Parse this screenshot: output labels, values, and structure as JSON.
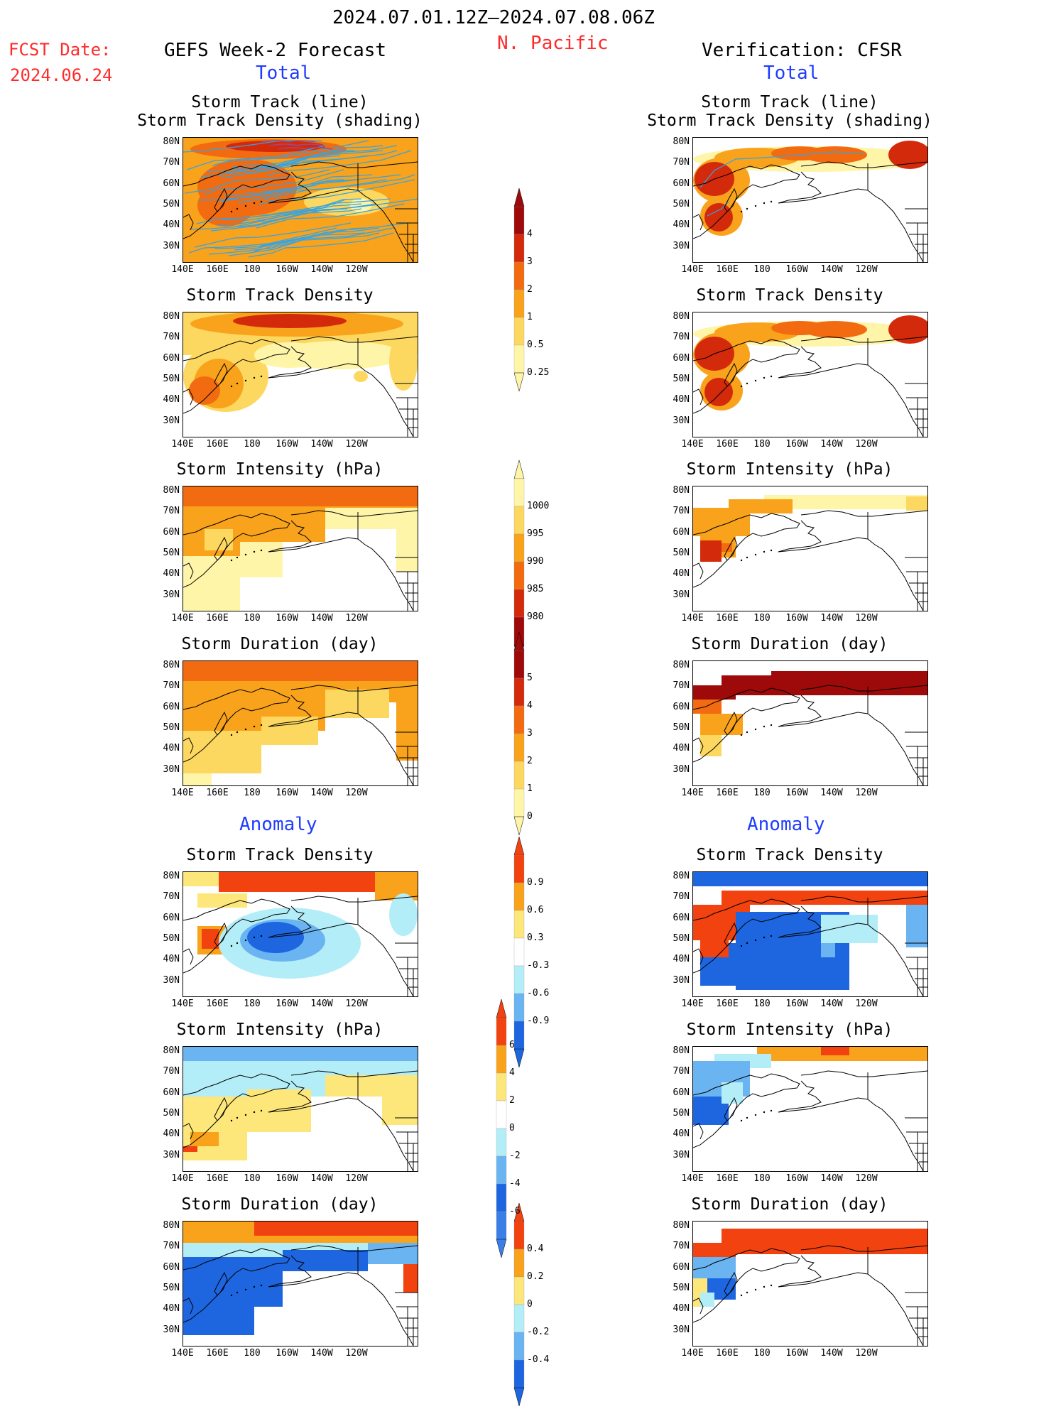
{
  "header": {
    "date_range": "2024.07.01.12Z–2024.07.08.06Z",
    "region": "N. Pacific",
    "fcst_label": "FCST Date:",
    "fcst_date": "2024.06.24",
    "left_title": "GEFS Week-2 Forecast",
    "right_title": "Verification: CFSR",
    "total_left": "Total",
    "total_right": "Total",
    "anomaly_left": "Anomaly",
    "anomaly_right": "Anomaly"
  },
  "panel_titles": {
    "track1": "Storm Track (line)",
    "track2": "Storm Track Density (shading)",
    "density": "Storm Track Density",
    "intensity": "Storm Intensity (hPa)",
    "duration": "Storm Duration (day)"
  },
  "axes": {
    "lat": [
      "80N",
      "70N",
      "60N",
      "50N",
      "40N",
      "30N"
    ],
    "lon": [
      "140E",
      "160E",
      "180",
      "160W",
      "140W",
      "120W"
    ]
  },
  "colorbars": {
    "density_total": [
      "4",
      "3",
      "2",
      "1",
      "0.5",
      "0.25"
    ],
    "intensity_total": [
      "1000",
      "995",
      "990",
      "985",
      "980"
    ],
    "duration_total": [
      "5",
      "4",
      "3",
      "2",
      "1",
      "0"
    ],
    "density_anom": [
      "0.9",
      "0.6",
      "0.3",
      "-0.3",
      "-0.6",
      "-0.9"
    ],
    "intensity_anom": [
      "6",
      "4",
      "2",
      "0",
      "-2",
      "-4",
      "-6"
    ],
    "duration_anom": [
      "0.4",
      "0.2",
      "0",
      "-0.2",
      "-0.4"
    ]
  },
  "colors": {
    "total_scale": [
      "#fff5a8",
      "#fdd860",
      "#f9a21b",
      "#f26b10",
      "#d42a0c",
      "#9e0a0a"
    ],
    "anom_pos": [
      "#fde67a",
      "#f9a21b",
      "#f2420f"
    ],
    "anom_neg": [
      "#b3eef8",
      "#6ab4f2",
      "#1e66e0"
    ],
    "track_line": "#33a4e6"
  }
}
